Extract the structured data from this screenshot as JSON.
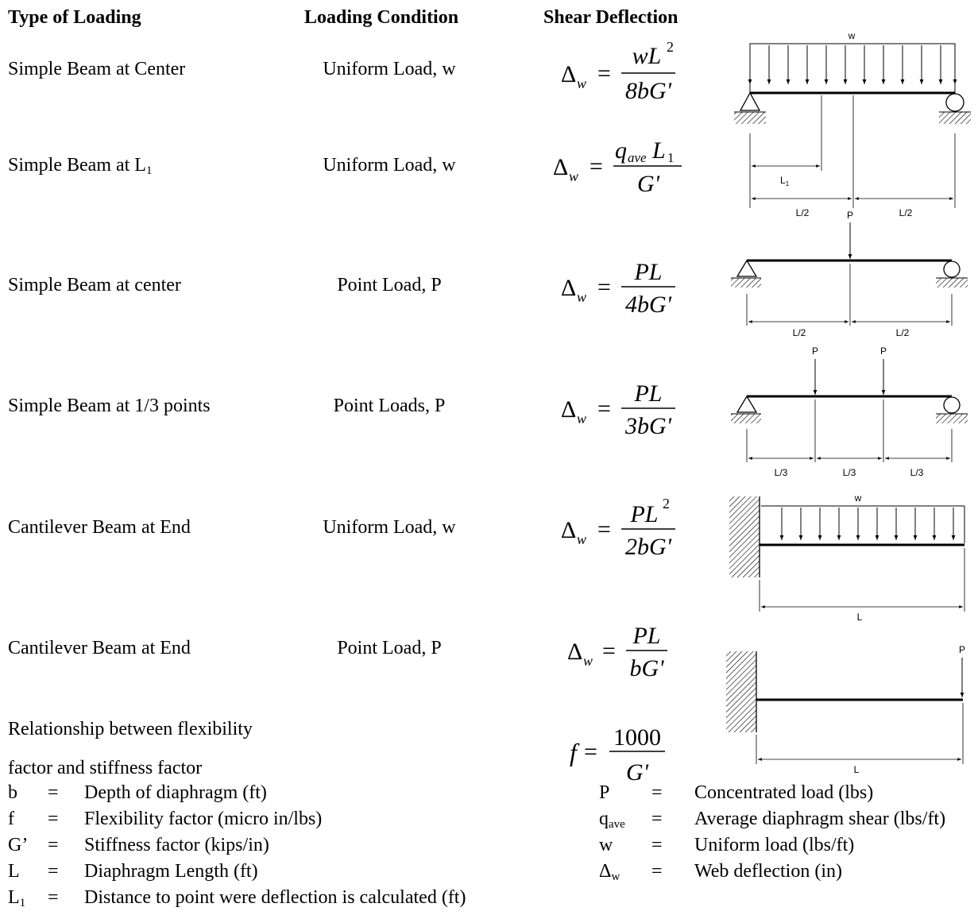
{
  "headers": {
    "type": "Type of Loading",
    "condition": "Loading Condition",
    "deflection": "Shear Deflection"
  },
  "rows": [
    {
      "type": "Simple Beam at Center",
      "condition": "Uniform Load, w"
    },
    {
      "type_main": "Simple Beam at L",
      "type_sub": "1",
      "condition": "Uniform Load, w"
    },
    {
      "type": "Simple Beam at center",
      "condition": "Point Load, P"
    },
    {
      "type": "Simple Beam at 1/3 points",
      "condition": "Point Loads, P"
    },
    {
      "type": "Cantilever Beam at End",
      "condition": "Uniform Load, w"
    },
    {
      "type": "Cantilever Beam at End",
      "condition": "Point Load, P"
    }
  ],
  "formulas": {
    "f1": {
      "lhs": "Δ",
      "lhs_sub": "w",
      "num": "wL",
      "num_sup": "2",
      "den": "8bG'"
    },
    "f2": {
      "lhs": "Δ",
      "lhs_sub": "w",
      "num_q": "q",
      "num_q_sub": "ave",
      "num_L": "L",
      "num_L_sub": "1",
      "den": "G'"
    },
    "f3": {
      "lhs": "Δ",
      "lhs_sub": "w",
      "num": "PL",
      "den": "4bG'"
    },
    "f4": {
      "lhs": "Δ",
      "lhs_sub": "w",
      "num": "PL",
      "den": "3bG'"
    },
    "f5": {
      "lhs": "Δ",
      "lhs_sub": "w",
      "num": "PL",
      "num_sup": "2",
      "den": "2bG'"
    },
    "f6": {
      "lhs": "Δ",
      "lhs_sub": "w",
      "num": "PL",
      "den": "bG'"
    },
    "f7": {
      "lhs": "f",
      "num": "1000",
      "den": "G'"
    }
  },
  "relationship": {
    "line1": "Relationship between flexibility",
    "line2": "factor and stiffness factor"
  },
  "diagram_labels": {
    "w": "w",
    "L1": "L",
    "L1_sub": "1",
    "L_half": "L/2",
    "P": "P",
    "L_third": "L/3",
    "L": "L"
  },
  "legend_left": [
    {
      "sym": "b",
      "sub": "",
      "eq": "=",
      "desc": "Depth of diaphragm (ft)"
    },
    {
      "sym": "f",
      "sub": "",
      "eq": "=",
      "desc": "Flexibility factor (micro in/lbs)"
    },
    {
      "sym": "G’",
      "sub": "",
      "eq": "=",
      "desc": "Stiffness factor (kips/in)"
    },
    {
      "sym": "L",
      "sub": "",
      "eq": "=",
      "desc": "Diaphragm Length (ft)"
    },
    {
      "sym": "L",
      "sub": "1",
      "eq": "=",
      "desc": "Distance to point were deflection is calculated (ft)"
    }
  ],
  "legend_right": [
    {
      "sym": "P",
      "sub": "",
      "eq": "=",
      "desc": "Concentrated load (lbs)"
    },
    {
      "sym": "q",
      "sub": "ave",
      "eq": "=",
      "desc": "Average diaphragm shear (lbs/ft)"
    },
    {
      "sym": "w",
      "sub": "",
      "eq": "=",
      "desc": "Uniform load (lbs/ft)"
    },
    {
      "sym": "Δ",
      "sub": "w",
      "eq": "=",
      "desc": "Web deflection (in)"
    }
  ]
}
